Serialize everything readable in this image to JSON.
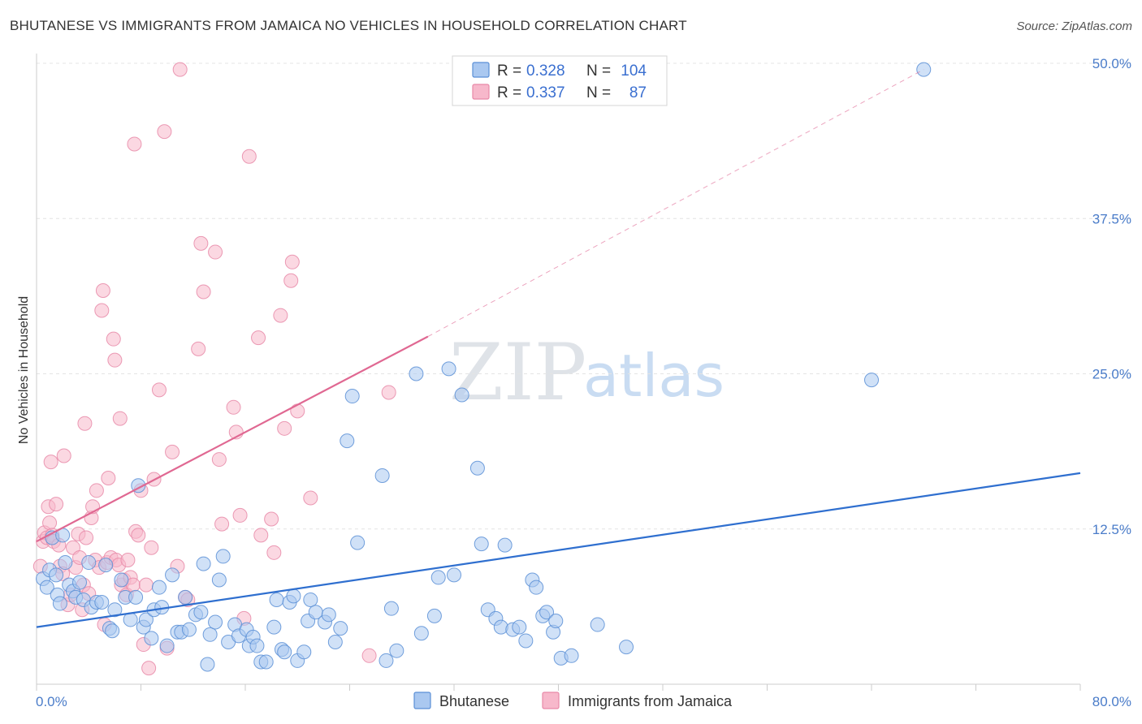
{
  "title": "BHUTANESE VS IMMIGRANTS FROM JAMAICA NO VEHICLES IN HOUSEHOLD CORRELATION CHART",
  "source": "Source: ZipAtlas.com",
  "watermark": {
    "zip": "ZIP",
    "atlas": "atlas"
  },
  "colors": {
    "blue_fill": "#aac8f0",
    "blue_edge": "#5b8fd6",
    "blue_line": "#2f6fcf",
    "pink_fill": "#f7b8cb",
    "pink_edge": "#e889a8",
    "pink_line": "#e06892",
    "tick_text": "#4a7cc9",
    "grid": "#e4e4e4"
  },
  "legend": {
    "r_label": "R =",
    "n_label": "N =",
    "rows": [
      {
        "series": "Bhutanese",
        "r": "0.328",
        "n": "104"
      },
      {
        "series": "Immigrants from Jamaica",
        "r": "0.337",
        "n": "87"
      }
    ]
  },
  "chart_data": {
    "type": "scatter",
    "title": "BHUTANESE VS IMMIGRANTS FROM JAMAICA NO VEHICLES IN HOUSEHOLD CORRELATION CHART",
    "xlabel": "",
    "ylabel": "No Vehicles in Household",
    "xlim": [
      0,
      80
    ],
    "ylim": [
      0,
      50
    ],
    "x_tick_labels": [
      "0.0%",
      "80.0%"
    ],
    "y_ticks": [
      12.5,
      25.0,
      37.5,
      50.0
    ],
    "y_tick_labels": [
      "12.5%",
      "25.0%",
      "37.5%",
      "50.0%"
    ],
    "legend_position": "top-center",
    "series": [
      {
        "name": "Bhutanese",
        "color": "#aac8f0",
        "trend": {
          "x0": 0,
          "y0": 4.6,
          "x1": 80,
          "y1": 17.0,
          "dashed_from": null
        },
        "points": [
          [
            0.5,
            8.5
          ],
          [
            0.8,
            7.8
          ],
          [
            1.0,
            9.2
          ],
          [
            1.2,
            11.8
          ],
          [
            1.5,
            8.8
          ],
          [
            1.6,
            7.2
          ],
          [
            1.8,
            6.5
          ],
          [
            2.0,
            12.0
          ],
          [
            2.2,
            9.8
          ],
          [
            2.5,
            8.0
          ],
          [
            2.8,
            7.5
          ],
          [
            3.0,
            7.0
          ],
          [
            3.3,
            8.2
          ],
          [
            3.6,
            6.8
          ],
          [
            4.0,
            9.8
          ],
          [
            4.2,
            6.2
          ],
          [
            4.6,
            6.6
          ],
          [
            5.0,
            6.6
          ],
          [
            5.3,
            9.6
          ],
          [
            5.6,
            4.5
          ],
          [
            5.8,
            4.3
          ],
          [
            6.0,
            6.0
          ],
          [
            6.5,
            8.4
          ],
          [
            6.8,
            7.0
          ],
          [
            7.2,
            5.2
          ],
          [
            7.6,
            7.0
          ],
          [
            7.8,
            16.0
          ],
          [
            8.2,
            4.6
          ],
          [
            8.4,
            5.2
          ],
          [
            8.8,
            3.7
          ],
          [
            9.0,
            6.0
          ],
          [
            9.4,
            7.8
          ],
          [
            9.6,
            6.2
          ],
          [
            10.0,
            3.1
          ],
          [
            10.4,
            8.8
          ],
          [
            10.8,
            4.2
          ],
          [
            11.1,
            4.2
          ],
          [
            11.4,
            7.0
          ],
          [
            11.7,
            4.4
          ],
          [
            12.2,
            5.6
          ],
          [
            12.6,
            5.8
          ],
          [
            12.8,
            9.7
          ],
          [
            13.1,
            1.6
          ],
          [
            13.3,
            4.0
          ],
          [
            13.7,
            5.0
          ],
          [
            14.0,
            8.4
          ],
          [
            14.3,
            10.3
          ],
          [
            14.7,
            3.4
          ],
          [
            15.2,
            4.8
          ],
          [
            15.5,
            3.9
          ],
          [
            16.1,
            4.4
          ],
          [
            16.3,
            3.1
          ],
          [
            16.6,
            3.8
          ],
          [
            16.9,
            3.1
          ],
          [
            17.2,
            1.8
          ],
          [
            17.6,
            1.8
          ],
          [
            18.2,
            4.6
          ],
          [
            18.4,
            6.8
          ],
          [
            18.8,
            2.8
          ],
          [
            19.0,
            2.6
          ],
          [
            19.4,
            6.6
          ],
          [
            19.7,
            7.1
          ],
          [
            20.0,
            1.9
          ],
          [
            20.5,
            2.6
          ],
          [
            20.8,
            5.1
          ],
          [
            21.0,
            6.8
          ],
          [
            21.4,
            5.8
          ],
          [
            22.1,
            5.0
          ],
          [
            22.4,
            5.6
          ],
          [
            22.9,
            3.4
          ],
          [
            23.3,
            4.5
          ],
          [
            23.8,
            19.6
          ],
          [
            24.2,
            23.2
          ],
          [
            24.6,
            11.4
          ],
          [
            26.5,
            16.8
          ],
          [
            26.8,
            1.9
          ],
          [
            27.2,
            6.1
          ],
          [
            27.6,
            2.7
          ],
          [
            29.1,
            25.0
          ],
          [
            29.5,
            4.1
          ],
          [
            30.5,
            5.5
          ],
          [
            30.8,
            8.6
          ],
          [
            31.6,
            25.4
          ],
          [
            32.0,
            8.8
          ],
          [
            32.6,
            23.3
          ],
          [
            33.8,
            17.4
          ],
          [
            34.1,
            11.3
          ],
          [
            34.6,
            6.0
          ],
          [
            35.2,
            5.3
          ],
          [
            35.6,
            4.6
          ],
          [
            35.9,
            11.2
          ],
          [
            36.5,
            4.4
          ],
          [
            37.0,
            4.6
          ],
          [
            37.5,
            3.5
          ],
          [
            38.0,
            8.4
          ],
          [
            38.3,
            7.8
          ],
          [
            38.8,
            5.5
          ],
          [
            39.1,
            5.8
          ],
          [
            39.6,
            4.2
          ],
          [
            39.8,
            5.1
          ],
          [
            40.2,
            2.1
          ],
          [
            41.0,
            2.3
          ],
          [
            43.0,
            4.8
          ],
          [
            45.2,
            3.0
          ],
          [
            64.0,
            24.5
          ],
          [
            68.0,
            49.5
          ]
        ]
      },
      {
        "name": "Immigrants from Jamaica",
        "color": "#f7b8cb",
        "trend": {
          "x0": 0,
          "y0": 11.5,
          "x1": 30,
          "y1": 28.0,
          "dashed_from": 30,
          "x2": 68,
          "y2": 49.5
        },
        "points": [
          [
            0.3,
            9.5
          ],
          [
            0.5,
            11.5
          ],
          [
            0.6,
            12.2
          ],
          [
            0.8,
            11.8
          ],
          [
            0.9,
            14.3
          ],
          [
            1.0,
            13.0
          ],
          [
            1.1,
            17.9
          ],
          [
            1.2,
            12.0
          ],
          [
            1.3,
            11.5
          ],
          [
            1.5,
            14.5
          ],
          [
            1.7,
            11.2
          ],
          [
            1.8,
            9.5
          ],
          [
            2.0,
            8.9
          ],
          [
            2.1,
            18.4
          ],
          [
            2.4,
            6.4
          ],
          [
            2.6,
            7.2
          ],
          [
            2.8,
            11.0
          ],
          [
            3.0,
            9.4
          ],
          [
            3.2,
            12.1
          ],
          [
            3.3,
            10.2
          ],
          [
            3.5,
            6.0
          ],
          [
            3.6,
            8.0
          ],
          [
            3.7,
            21.0
          ],
          [
            3.8,
            11.8
          ],
          [
            4.0,
            7.3
          ],
          [
            4.2,
            13.4
          ],
          [
            4.3,
            14.3
          ],
          [
            4.5,
            10.0
          ],
          [
            4.6,
            15.6
          ],
          [
            4.8,
            9.4
          ],
          [
            5.0,
            30.1
          ],
          [
            5.1,
            31.7
          ],
          [
            5.2,
            4.8
          ],
          [
            5.4,
            9.8
          ],
          [
            5.5,
            16.6
          ],
          [
            5.7,
            10.2
          ],
          [
            5.9,
            27.8
          ],
          [
            6.0,
            26.1
          ],
          [
            6.1,
            10.0
          ],
          [
            6.3,
            9.6
          ],
          [
            6.4,
            21.4
          ],
          [
            6.5,
            8.0
          ],
          [
            6.7,
            8.4
          ],
          [
            6.9,
            7.2
          ],
          [
            7.0,
            10.0
          ],
          [
            7.2,
            8.6
          ],
          [
            7.4,
            8.0
          ],
          [
            7.5,
            43.5
          ],
          [
            7.6,
            12.3
          ],
          [
            7.8,
            12.0
          ],
          [
            8.0,
            15.6
          ],
          [
            8.2,
            3.2
          ],
          [
            8.4,
            8.0
          ],
          [
            8.6,
            1.3
          ],
          [
            8.8,
            11.0
          ],
          [
            9.0,
            16.5
          ],
          [
            9.4,
            23.7
          ],
          [
            9.8,
            44.5
          ],
          [
            10.0,
            2.9
          ],
          [
            10.4,
            18.7
          ],
          [
            10.8,
            9.5
          ],
          [
            11.0,
            49.5
          ],
          [
            11.4,
            7.0
          ],
          [
            11.6,
            6.8
          ],
          [
            12.4,
            27.0
          ],
          [
            12.6,
            35.5
          ],
          [
            12.8,
            31.6
          ],
          [
            13.7,
            34.8
          ],
          [
            14.0,
            18.1
          ],
          [
            14.2,
            12.9
          ],
          [
            15.1,
            22.3
          ],
          [
            15.3,
            20.3
          ],
          [
            15.6,
            13.6
          ],
          [
            15.9,
            5.3
          ],
          [
            16.3,
            42.5
          ],
          [
            17.0,
            27.9
          ],
          [
            17.2,
            12.0
          ],
          [
            18.0,
            13.3
          ],
          [
            18.2,
            10.6
          ],
          [
            18.7,
            29.7
          ],
          [
            19.0,
            20.6
          ],
          [
            19.5,
            32.5
          ],
          [
            19.6,
            34.0
          ],
          [
            20.0,
            22.0
          ],
          [
            21.0,
            15.0
          ],
          [
            25.5,
            2.3
          ],
          [
            27.0,
            23.5
          ]
        ]
      }
    ]
  },
  "bottom_legend": [
    "Bhutanese",
    "Immigrants from Jamaica"
  ]
}
